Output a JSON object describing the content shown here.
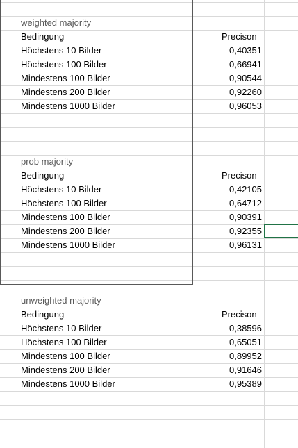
{
  "tables": [
    {
      "title": "weighted majority",
      "header": {
        "condition": "Bedingung",
        "metric": "Precison"
      },
      "rows": [
        {
          "condition": "Höchstens 10 Bilder",
          "value": "0,40351"
        },
        {
          "condition": "Höchstens 100 Bilder",
          "value": "0,66941"
        },
        {
          "condition": "Mindestens 100 Bilder",
          "value": "0,90544"
        },
        {
          "condition": "Mindestens 200 Bilder",
          "value": "0,92260"
        },
        {
          "condition": "Mindestens 1000 Bilder",
          "value": "0,96053"
        }
      ]
    },
    {
      "title": "prob majority",
      "header": {
        "condition": "Bedingung",
        "metric": "Precison"
      },
      "rows": [
        {
          "condition": "Höchstens 10 Bilder",
          "value": "0,42105"
        },
        {
          "condition": "Höchstens 100 Bilder",
          "value": "0,64712"
        },
        {
          "condition": "Mindestens 100 Bilder",
          "value": "0,90391"
        },
        {
          "condition": "Mindestens 200 Bilder",
          "value": "0,92355"
        },
        {
          "condition": "Mindestens 1000 Bilder",
          "value": "0,96131"
        }
      ]
    },
    {
      "title": "unweighted majority",
      "header": {
        "condition": "Bedingung",
        "metric": "Precison"
      },
      "rows": [
        {
          "condition": "Höchstens 10 Bilder",
          "value": "0,38596"
        },
        {
          "condition": "Höchstens 100 Bilder",
          "value": "0,65051"
        },
        {
          "condition": "Mindestens 100 Bilder",
          "value": "0,89952"
        },
        {
          "condition": "Mindestens 200 Bilder",
          "value": "0,91646"
        },
        {
          "condition": "Mindestens 1000 Bilder",
          "value": "0,95389"
        }
      ]
    }
  ],
  "colors": {
    "gridline": "#d9d9d9",
    "border": "#595959",
    "selection": "#217346"
  }
}
